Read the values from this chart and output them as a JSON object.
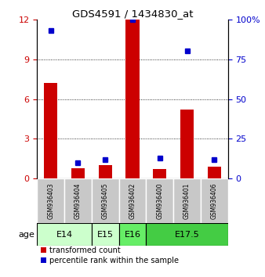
{
  "title": "GDS4591 / 1434830_at",
  "samples": [
    "GSM936403",
    "GSM936404",
    "GSM936405",
    "GSM936402",
    "GSM936400",
    "GSM936401",
    "GSM936406"
  ],
  "transformed_counts": [
    7.2,
    0.8,
    1.0,
    12.0,
    0.7,
    5.2,
    0.9
  ],
  "percentile_ranks": [
    93,
    10,
    12,
    100,
    13,
    80,
    12
  ],
  "age_groups": [
    {
      "label": "E14",
      "indices": [
        0,
        1
      ],
      "color": "#ccffcc"
    },
    {
      "label": "E15",
      "indices": [
        2
      ],
      "color": "#ccffcc"
    },
    {
      "label": "E16",
      "indices": [
        3
      ],
      "color": "#66ee66"
    },
    {
      "label": "E17.5",
      "indices": [
        4,
        5,
        6
      ],
      "color": "#44cc44"
    }
  ],
  "ylim_left": [
    0,
    12
  ],
  "ylim_right": [
    0,
    100
  ],
  "yticks_left": [
    0,
    3,
    6,
    9,
    12
  ],
  "yticks_right": [
    0,
    25,
    50,
    75,
    100
  ],
  "bar_color_red": "#cc0000",
  "bar_color_blue": "#0000cc",
  "bg_color_sample": "#c8c8c8",
  "bg_color_e14_e15": "#ccffcc",
  "bg_color_e16": "#66ee66",
  "bg_color_e175": "#44cc44",
  "legend_red": "transformed count",
  "legend_blue": "percentile rank within the sample"
}
